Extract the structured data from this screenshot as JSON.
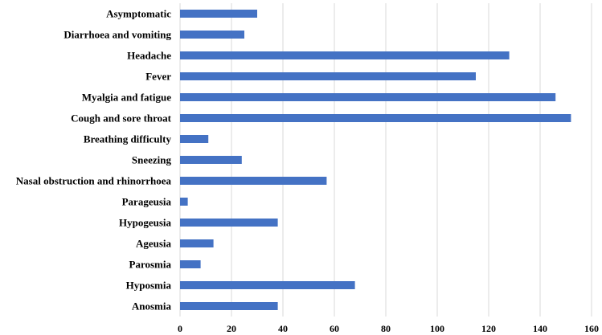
{
  "chart_data": {
    "type": "bar",
    "orientation": "horizontal",
    "categories": [
      "Asymptomatic",
      "Diarrhoea and vomiting",
      "Headache",
      "Fever",
      "Myalgia and fatigue",
      "Cough and sore throat",
      "Breathing difficulty",
      "Sneezing",
      "Nasal obstruction and rhinorrhoea",
      "Parageusia",
      "Hypogeusia",
      "Ageusia",
      "Parosmia",
      "Hyposmia",
      "Anosmia"
    ],
    "values": [
      30,
      25,
      128,
      115,
      146,
      152,
      11,
      24,
      57,
      3,
      38,
      13,
      8,
      68,
      38
    ],
    "xlim": [
      0,
      160
    ],
    "xticks": [
      "0",
      "20",
      "40",
      "60",
      "80",
      "100",
      "120",
      "140",
      "160"
    ],
    "grid": "vertical",
    "bar_color": "#4472c4",
    "title": "",
    "xlabel": "",
    "ylabel": ""
  }
}
